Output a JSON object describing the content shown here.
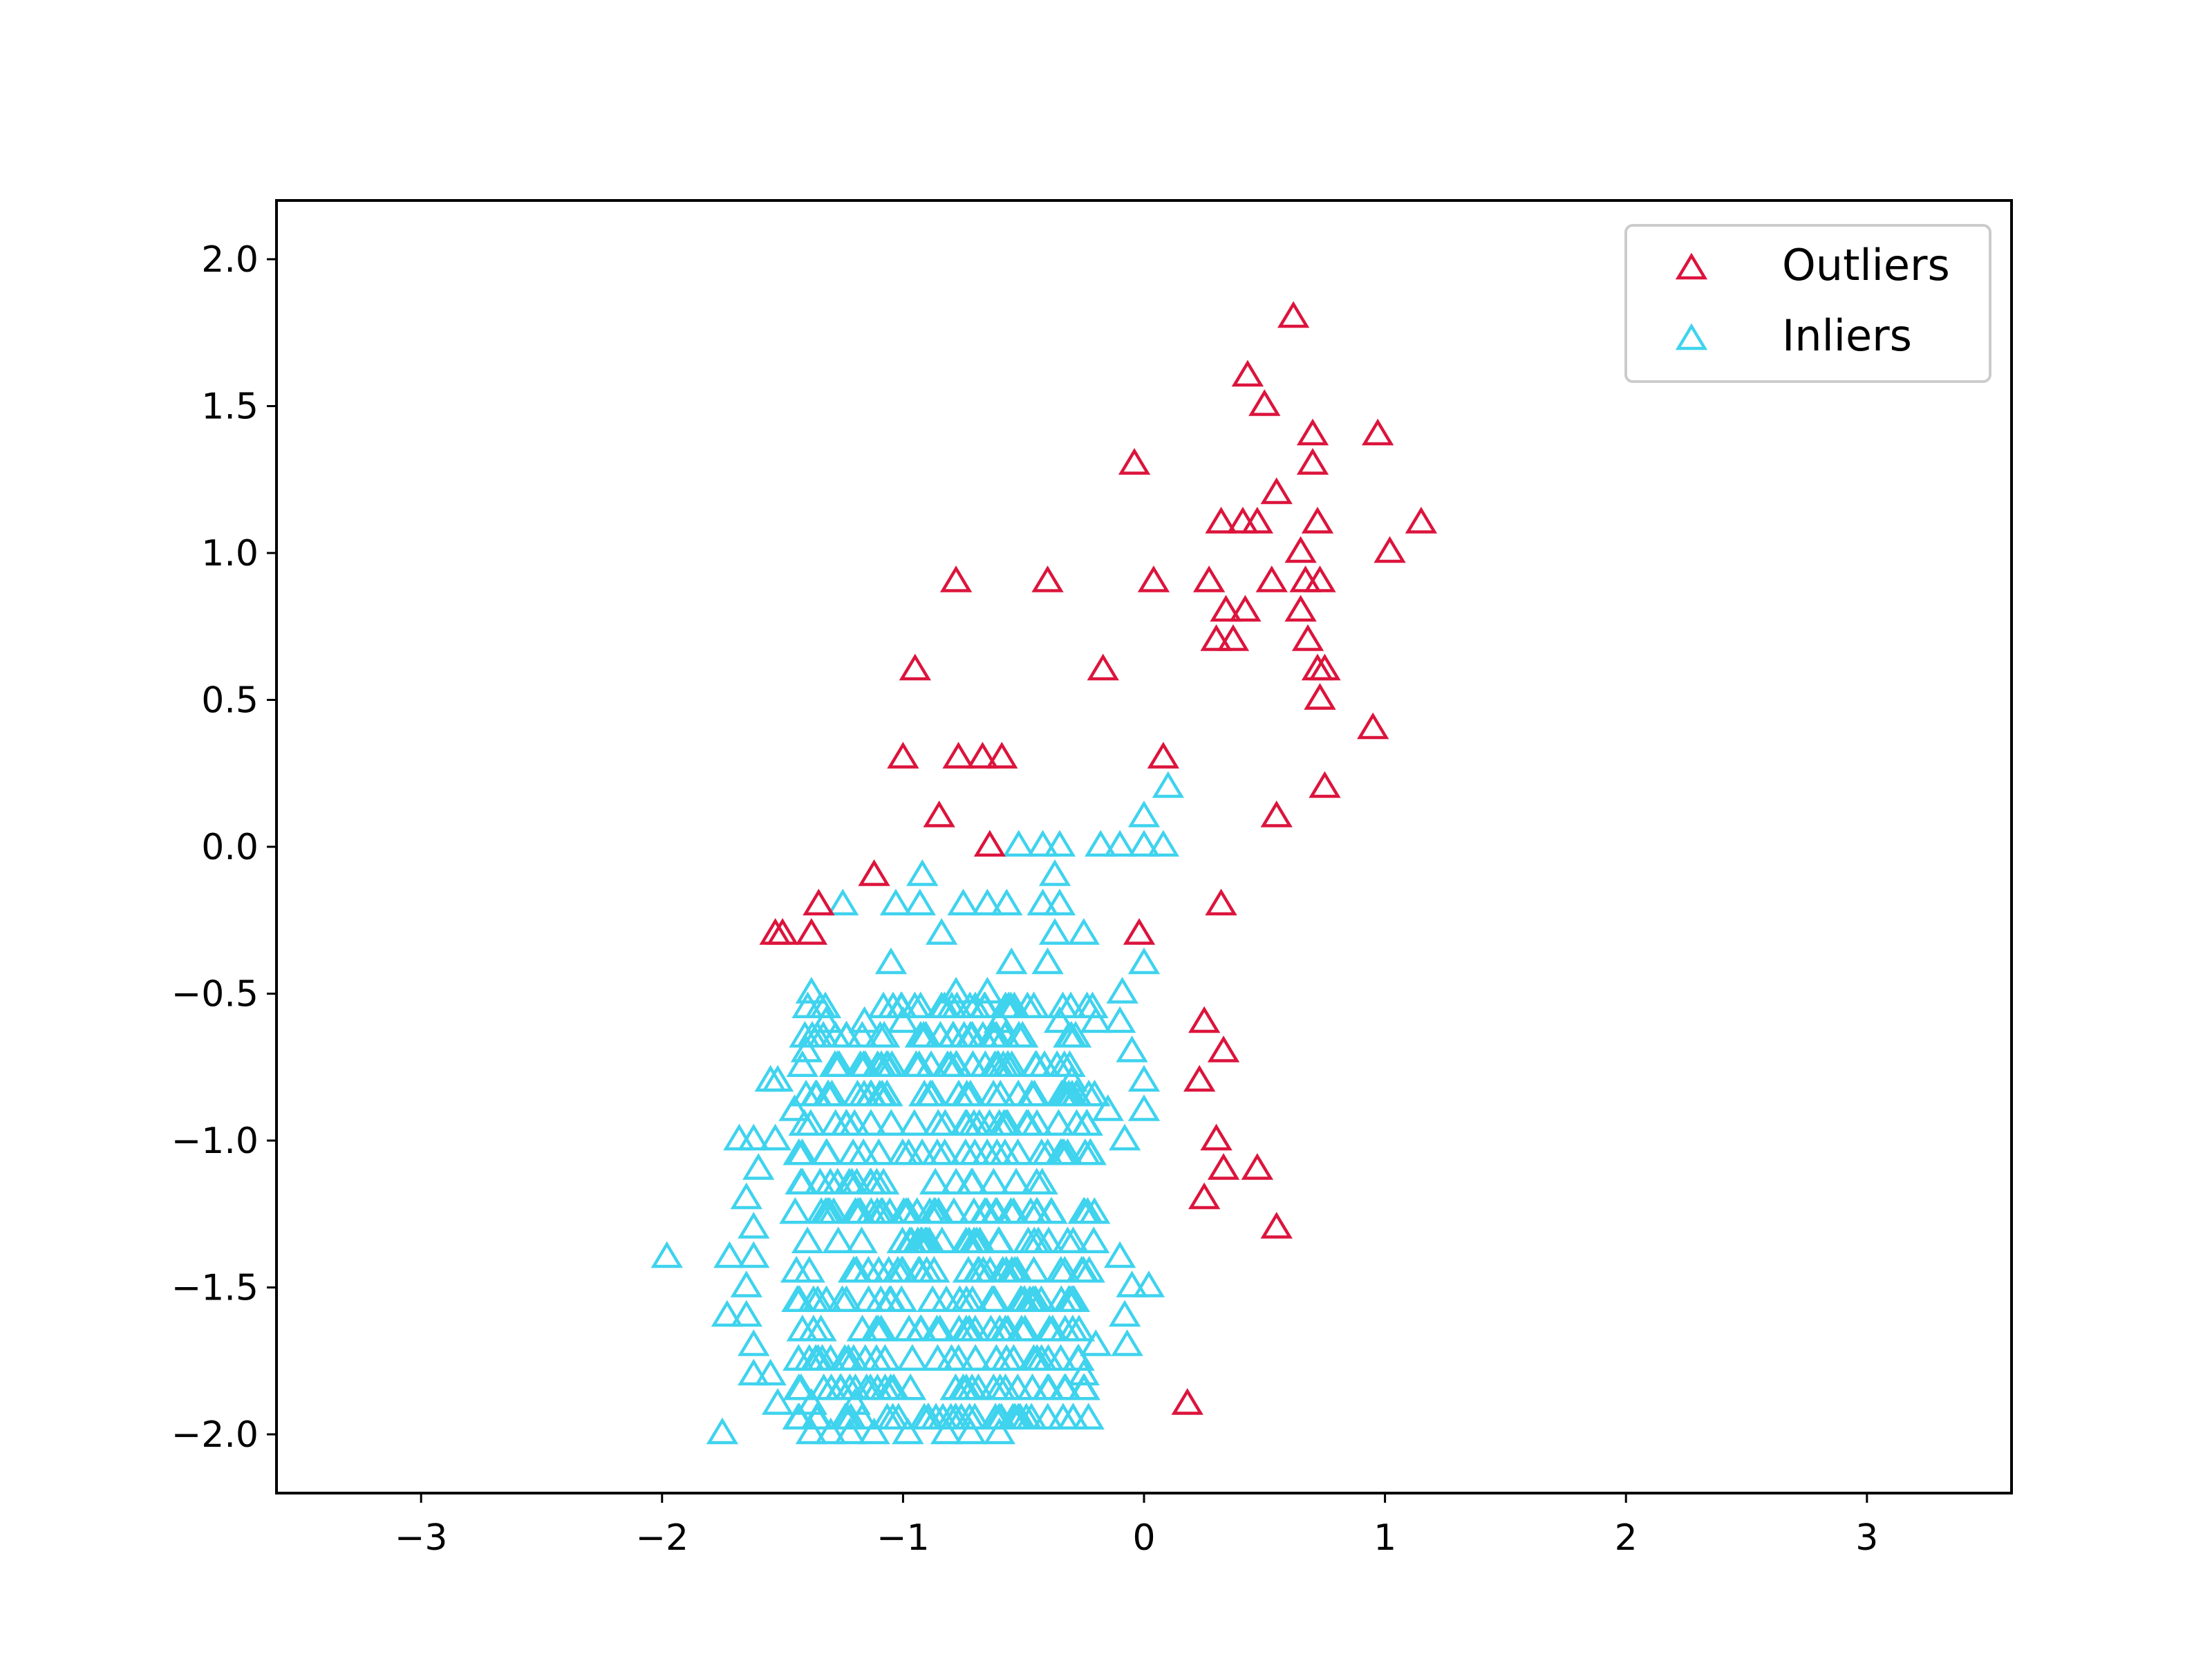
{
  "chart_data": {
    "type": "scatter",
    "title": "",
    "xlabel": "",
    "ylabel": "",
    "xlim": [
      -3.6,
      3.6
    ],
    "ylim": [
      -2.2,
      2.2
    ],
    "xticks": [
      "−3",
      "−2",
      "−1",
      "0",
      "1",
      "2",
      "3"
    ],
    "xtick_values": [
      -3,
      -2,
      -1,
      0,
      1,
      2,
      3
    ],
    "yticks": [
      "−2.0",
      "−1.5",
      "−1.0",
      "−0.5",
      "0.0",
      "0.5",
      "1.0",
      "1.5",
      "2.0"
    ],
    "ytick_values": [
      -2.0,
      -1.5,
      -1.0,
      -0.5,
      0.0,
      0.5,
      1.0,
      1.5,
      2.0
    ],
    "grid": false,
    "legend_position": "top-right",
    "marker": "hollow-triangle",
    "series": [
      {
        "name": "Outliers",
        "color": "#dc143c",
        "points": [
          [
            0.62,
            1.8
          ],
          [
            0.43,
            1.6
          ],
          [
            0.5,
            1.5
          ],
          [
            0.7,
            1.4
          ],
          [
            0.97,
            1.4
          ],
          [
            -0.04,
            1.3
          ],
          [
            0.7,
            1.3
          ],
          [
            0.55,
            1.2
          ],
          [
            0.32,
            1.1
          ],
          [
            0.41,
            1.1
          ],
          [
            0.47,
            1.1
          ],
          [
            0.72,
            1.1
          ],
          [
            1.15,
            1.1
          ],
          [
            0.65,
            1.0
          ],
          [
            1.02,
            1.0
          ],
          [
            -0.78,
            0.9
          ],
          [
            -0.4,
            0.9
          ],
          [
            0.04,
            0.9
          ],
          [
            0.27,
            0.9
          ],
          [
            0.53,
            0.9
          ],
          [
            0.67,
            0.9
          ],
          [
            0.73,
            0.9
          ],
          [
            0.34,
            0.8
          ],
          [
            0.42,
            0.8
          ],
          [
            0.65,
            0.8
          ],
          [
            0.3,
            0.7
          ],
          [
            0.37,
            0.7
          ],
          [
            0.68,
            0.7
          ],
          [
            -0.95,
            0.6
          ],
          [
            -0.17,
            0.6
          ],
          [
            0.72,
            0.6
          ],
          [
            0.75,
            0.6
          ],
          [
            0.73,
            0.5
          ],
          [
            0.95,
            0.4
          ],
          [
            -1.0,
            0.3
          ],
          [
            -0.77,
            0.3
          ],
          [
            -0.67,
            0.3
          ],
          [
            -0.59,
            0.3
          ],
          [
            0.08,
            0.3
          ],
          [
            0.75,
            0.2
          ],
          [
            -0.85,
            0.1
          ],
          [
            0.55,
            0.1
          ],
          [
            -0.64,
            0.0
          ],
          [
            -1.12,
            -0.1
          ],
          [
            -1.35,
            -0.2
          ],
          [
            0.32,
            -0.2
          ],
          [
            -1.53,
            -0.3
          ],
          [
            -1.5,
            -0.3
          ],
          [
            -1.38,
            -0.3
          ],
          [
            -0.02,
            -0.3
          ],
          [
            0.25,
            -0.6
          ],
          [
            0.33,
            -0.7
          ],
          [
            0.23,
            -0.8
          ],
          [
            0.3,
            -1.0
          ],
          [
            0.33,
            -1.1
          ],
          [
            0.47,
            -1.1
          ],
          [
            0.25,
            -1.2
          ],
          [
            0.55,
            -1.3
          ],
          [
            0.18,
            -1.9
          ]
        ]
      },
      {
        "name": "Inliers",
        "color": "#3fd3ee",
        "points": [
          [
            0.1,
            0.2
          ],
          [
            0.0,
            0.1
          ],
          [
            -0.52,
            0.0
          ],
          [
            -0.42,
            0.0
          ],
          [
            -0.35,
            0.0
          ],
          [
            -0.18,
            0.0
          ],
          [
            -0.1,
            0.0
          ],
          [
            0.0,
            0.0
          ],
          [
            0.08,
            0.0
          ],
          [
            -0.92,
            -0.1
          ],
          [
            -0.37,
            -0.1
          ],
          [
            -1.25,
            -0.2
          ],
          [
            -1.03,
            -0.2
          ],
          [
            -0.93,
            -0.2
          ],
          [
            -0.75,
            -0.2
          ],
          [
            -0.57,
            -0.2
          ],
          [
            -0.42,
            -0.2
          ],
          [
            -0.35,
            -0.2
          ],
          [
            -0.65,
            -0.2
          ],
          [
            -0.37,
            -0.3
          ],
          [
            -0.25,
            -0.3
          ],
          [
            -0.84,
            -0.3
          ],
          [
            0.0,
            -0.4
          ],
          [
            -1.05,
            -0.4
          ],
          [
            -0.55,
            -0.4
          ],
          [
            -0.4,
            -0.4
          ],
          [
            -1.38,
            -0.5
          ],
          [
            -0.09,
            -0.5
          ],
          [
            -0.78,
            -0.5
          ],
          [
            -0.65,
            -0.5
          ],
          [
            -1.32,
            -0.6
          ],
          [
            -1.16,
            -0.6
          ],
          [
            -1.0,
            -0.6
          ],
          [
            -0.6,
            -0.6
          ],
          [
            -0.35,
            -0.6
          ],
          [
            -0.2,
            -0.6
          ],
          [
            -0.1,
            -0.6
          ],
          [
            -1.4,
            -0.7
          ],
          [
            -0.05,
            -0.7
          ],
          [
            0.0,
            -0.8
          ],
          [
            -1.55,
            -0.8
          ],
          [
            -1.52,
            -0.8
          ],
          [
            -0.3,
            -0.8
          ],
          [
            -1.45,
            -0.9
          ],
          [
            -0.15,
            -0.9
          ],
          [
            0.0,
            -0.9
          ],
          [
            -1.62,
            -1.0
          ],
          [
            -1.53,
            -1.0
          ],
          [
            -0.08,
            -1.0
          ],
          [
            -1.6,
            -1.1
          ],
          [
            -1.68,
            -1.0
          ],
          [
            -1.62,
            -1.3
          ],
          [
            -1.65,
            -1.2
          ],
          [
            -1.62,
            -1.4
          ],
          [
            -0.1,
            -1.4
          ],
          [
            -1.98,
            -1.4
          ],
          [
            -1.72,
            -1.4
          ],
          [
            -1.65,
            -1.5
          ],
          [
            -0.05,
            -1.5
          ],
          [
            0.02,
            -1.5
          ],
          [
            -1.73,
            -1.6
          ],
          [
            -1.65,
            -1.6
          ],
          [
            -0.08,
            -1.6
          ],
          [
            -1.62,
            -1.7
          ],
          [
            -0.07,
            -1.7
          ],
          [
            -0.2,
            -1.7
          ],
          [
            -1.62,
            -1.8
          ],
          [
            -1.55,
            -1.8
          ],
          [
            -0.25,
            -1.8
          ],
          [
            -1.52,
            -1.9
          ],
          [
            -1.38,
            -1.9
          ],
          [
            -1.2,
            -1.9
          ],
          [
            -1.75,
            -2.0
          ],
          [
            -1.38,
            -2.0
          ],
          [
            -1.3,
            -2.0
          ],
          [
            -1.22,
            -2.0
          ],
          [
            -1.12,
            -2.0
          ],
          [
            -0.98,
            -2.0
          ],
          [
            -0.82,
            -2.0
          ],
          [
            -0.72,
            -2.0
          ],
          [
            -0.6,
            -2.0
          ]
        ]
      }
    ],
    "dense_inlier_cluster": {
      "x_range": [
        -1.45,
        -0.2
      ],
      "y_range": [
        -1.95,
        -0.5
      ],
      "y_step": 0.1,
      "count": 460
    }
  }
}
